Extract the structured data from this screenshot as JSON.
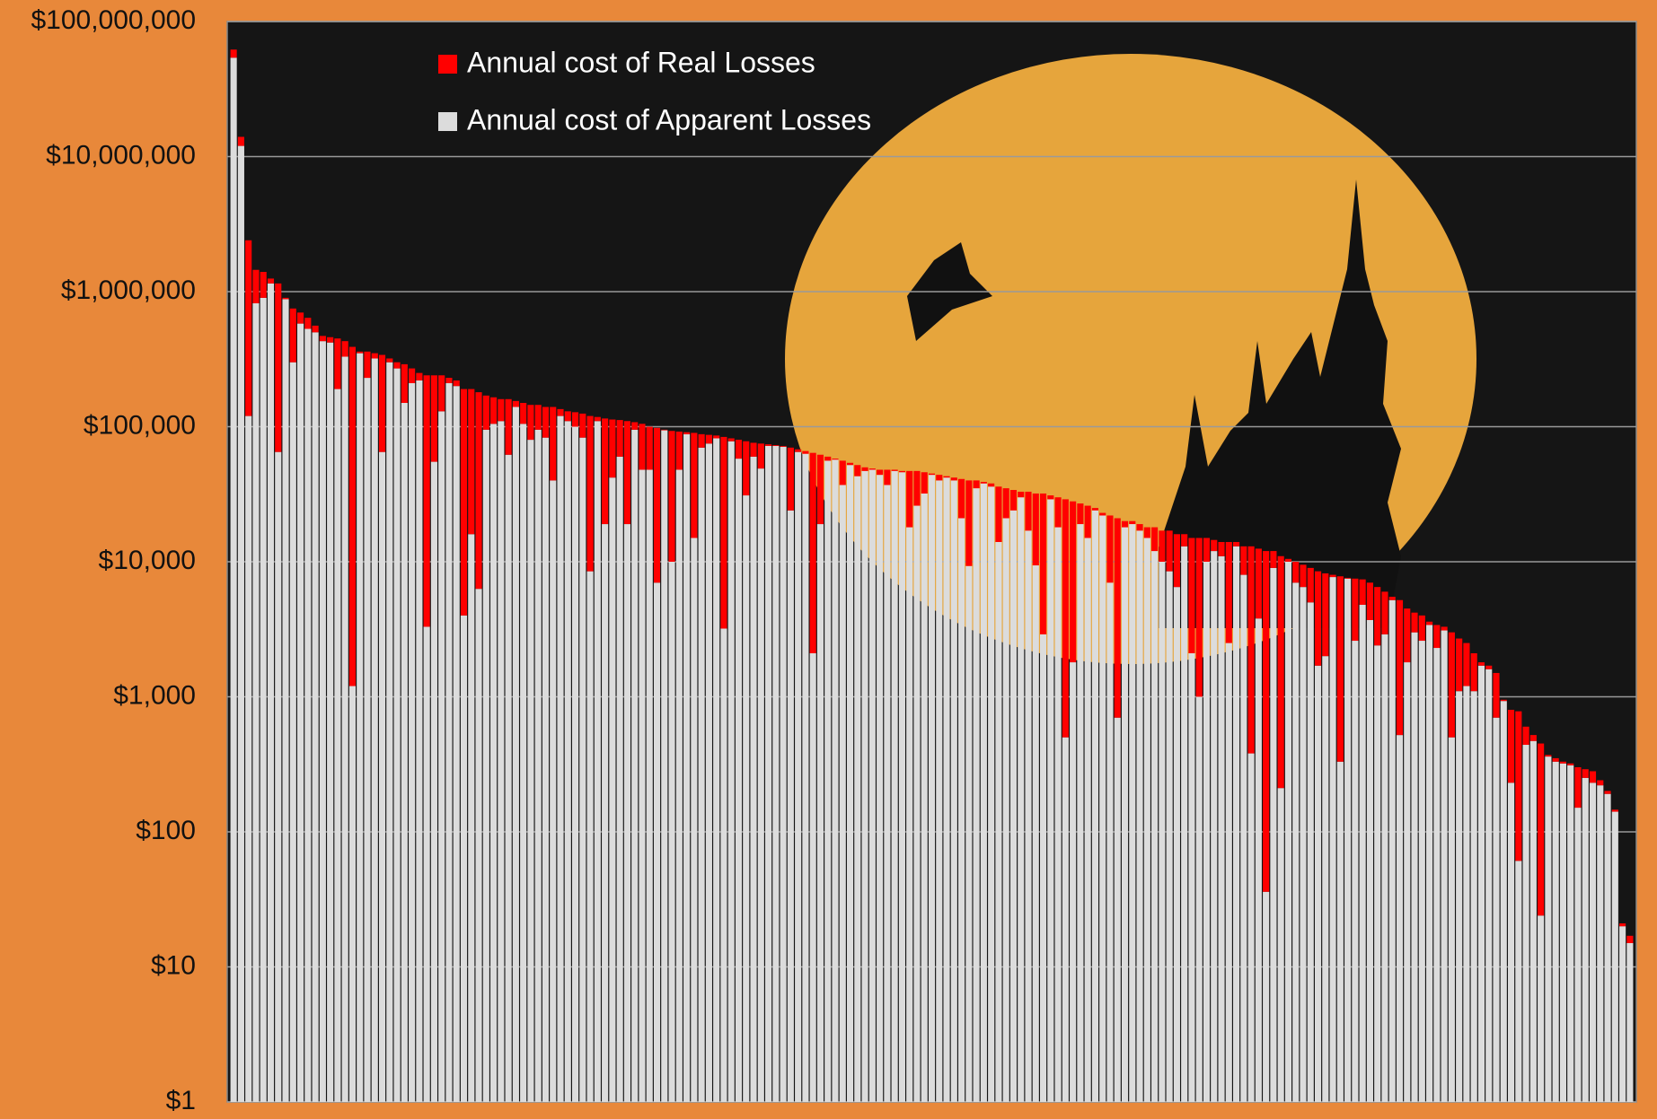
{
  "chart_data": {
    "type": "stacked-bar",
    "log_scale": true,
    "grid": true,
    "legend_position": "top-left",
    "ylim": [
      1,
      100000000
    ],
    "yticks": [
      {
        "value": 1,
        "label": "$1"
      },
      {
        "value": 10,
        "label": "$10"
      },
      {
        "value": 100,
        "label": "$100"
      },
      {
        "value": 1000,
        "label": "$1,000"
      },
      {
        "value": 10000,
        "label": "$10,000"
      },
      {
        "value": 100000,
        "label": "$100,000"
      },
      {
        "value": 1000000,
        "label": "$1,000,000"
      },
      {
        "value": 10000000,
        "label": "$10,000,000"
      },
      {
        "value": 100000000,
        "label": "$100,000,000"
      }
    ],
    "series": [
      {
        "name": "Annual cost of Apparent Losses",
        "color": "#dcdcdc",
        "values": [
          54000000,
          12000000,
          120000,
          820000,
          900000,
          1150000,
          65000,
          880000,
          300000,
          580000,
          530000,
          500000,
          430000,
          420000,
          190000,
          330000,
          1200,
          350000,
          230000,
          320000,
          65000,
          300000,
          270000,
          150000,
          210000,
          220000,
          3300,
          55000,
          130000,
          210000,
          200000,
          4000,
          16000,
          6300,
          95000,
          105000,
          110000,
          62000,
          140000,
          105000,
          80000,
          95000,
          83000,
          40000,
          120000,
          110000,
          100000,
          83000,
          8500,
          110000,
          19000,
          42000,
          60000,
          19000,
          95000,
          48000,
          48000,
          7000,
          94000,
          10000,
          48000,
          88000,
          15000,
          70000,
          75000,
          82000,
          3200,
          78000,
          58000,
          31000,
          60000,
          49000,
          72000,
          72000,
          71000,
          24000,
          65000,
          63000,
          2100,
          19000,
          56000,
          57000,
          37000,
          52000,
          43000,
          47000,
          48000,
          44000,
          37000,
          47000,
          46000,
          18000,
          26000,
          32000,
          44000,
          40000,
          42000,
          40000,
          21000,
          9300,
          35000,
          38000,
          36000,
          14000,
          21000,
          24000,
          30000,
          17000,
          9400,
          2900,
          29000,
          18000,
          500,
          1800,
          19000,
          15000,
          24000,
          22000,
          7000,
          700,
          18000,
          19000,
          17000,
          15000,
          12000,
          10000,
          8500,
          6500,
          13000,
          2100,
          1000,
          10000,
          12000,
          11000,
          2500,
          13000,
          8000,
          380,
          3800,
          35,
          9000,
          210,
          10000,
          7000,
          6500,
          5000,
          1700,
          2000,
          7700,
          330,
          7500,
          2600,
          4800,
          3700,
          2400,
          2900,
          5200,
          520,
          1800,
          3000,
          2600,
          3400,
          2300,
          3100,
          500,
          1100,
          1200,
          1100,
          1700,
          1600,
          700,
          930,
          230,
          60,
          440,
          470,
          23,
          360,
          330,
          320,
          310,
          150,
          250,
          230,
          220,
          190,
          140,
          19,
          14
        ]
      },
      {
        "name": "Annual cost of Real Losses",
        "color": "#ff0000",
        "values": [
          8000000,
          2000000,
          2280000,
          630000,
          500000,
          100000,
          1085000,
          20000,
          450000,
          120000,
          110000,
          60000,
          40000,
          40000,
          260000,
          100000,
          388800,
          10000,
          130000,
          30000,
          275000,
          20000,
          30000,
          140000,
          60000,
          30000,
          236700,
          185000,
          110000,
          20000,
          20000,
          186000,
          174000,
          173700,
          75000,
          60000,
          50000,
          98000,
          15000,
          45000,
          65000,
          50000,
          57000,
          100000,
          15000,
          20000,
          28000,
          42000,
          111500,
          8000,
          96000,
          71000,
          52000,
          91000,
          13000,
          57000,
          52000,
          91000,
          1000,
          83000,
          44000,
          3000,
          75000,
          18000,
          12000,
          4000,
          80800,
          4000,
          22000,
          47000,
          16000,
          26000,
          2000,
          1000,
          1000,
          46000,
          3000,
          3000,
          61900,
          43000,
          4000,
          1000,
          19000,
          2000,
          9000,
          3000,
          1000,
          4000,
          11000,
          1000,
          1000,
          29000,
          21000,
          14000,
          1000,
          4000,
          1000,
          2000,
          20000,
          30700,
          5000,
          1000,
          2000,
          22000,
          14000,
          10000,
          3000,
          16000,
          22600,
          29100,
          2000,
          12000,
          28500,
          26200,
          8000,
          11000,
          1000,
          1000,
          15000,
          20300,
          2000,
          1000,
          2000,
          3000,
          6000,
          7000,
          8500,
          9500,
          3000,
          12900,
          14000,
          5000,
          2500,
          3000,
          11500,
          1000,
          5000,
          12620,
          8700,
          11965,
          3000,
          10790,
          500,
          3000,
          3000,
          4000,
          6800,
          6200,
          300,
          7470,
          100,
          4900,
          2600,
          3300,
          4100,
          3100,
          300,
          4680,
          2700,
          1200,
          1400,
          200,
          1100,
          200,
          2500,
          1600,
          1300,
          1000,
          100,
          100,
          800,
          20,
          570,
          720,
          160,
          50,
          427,
          10,
          20,
          10,
          10,
          150,
          40,
          50,
          20,
          10,
          5,
          1,
          2
        ]
      }
    ]
  }
}
